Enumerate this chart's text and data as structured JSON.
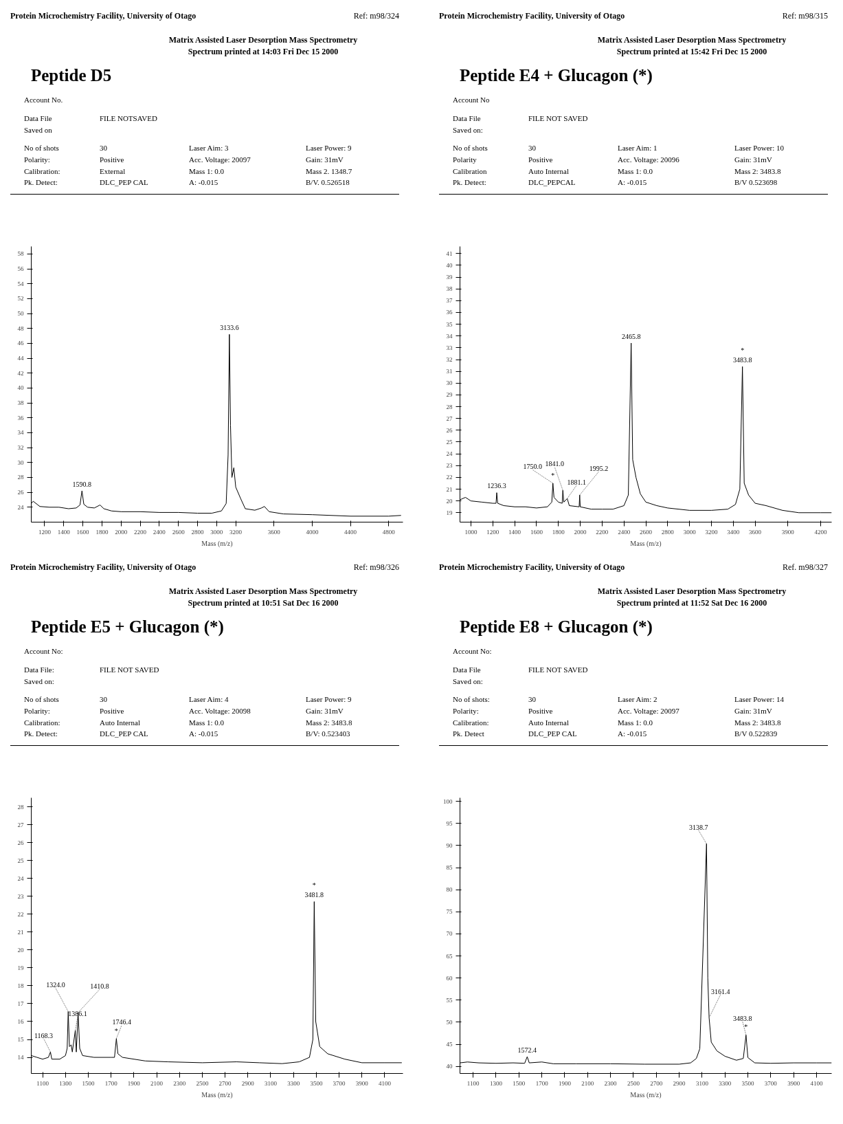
{
  "chart_data": [
    {
      "type": "line",
      "title": "Peptide D5",
      "subtitle": "Matrix Assisted Laser Desorption Mass Spectrometry",
      "xlabel": "Mass (m/z)",
      "color": "#000000",
      "xlim": [
        1060,
        4950
      ],
      "xticks": [
        1200,
        1400,
        1600,
        1800,
        2000,
        2200,
        2400,
        2600,
        2800,
        3000,
        3200,
        3600,
        4000,
        4400,
        4800
      ],
      "ylim": [
        22,
        59
      ],
      "yticks": [
        24,
        26,
        28,
        30,
        32,
        34,
        36,
        38,
        40,
        42,
        44,
        46,
        48,
        50,
        52,
        54,
        56,
        58
      ],
      "x": [
        1060,
        1080,
        1150,
        1250,
        1350,
        1450,
        1530,
        1570,
        1590.8,
        1610,
        1650,
        1720,
        1780,
        1820,
        1900,
        2000,
        2200,
        2400,
        2600,
        2800,
        2950,
        3050,
        3100,
        3120,
        3133.6,
        3145,
        3160,
        3180,
        3200,
        3250,
        3300,
        3400,
        3470,
        3500,
        3550,
        3700,
        4000,
        4400,
        4800,
        4930
      ],
      "values": [
        24.5,
        24.8,
        24.1,
        24.0,
        24.0,
        23.8,
        23.9,
        24.3,
        26.2,
        24.4,
        24.0,
        23.9,
        24.3,
        23.8,
        23.5,
        23.4,
        23.4,
        23.3,
        23.3,
        23.2,
        23.2,
        23.5,
        24.5,
        31.0,
        47.2,
        35.0,
        28.0,
        29.3,
        26.7,
        25.2,
        23.8,
        23.6,
        23.9,
        24.1,
        23.4,
        23.1,
        23.0,
        22.8,
        22.8,
        22.9
      ],
      "annotations": [
        "Protein Microchemistry Facility, University of Otago",
        "Ref: m98/324",
        "Spectrum printed at 14:03 Fri Dec 15 2000",
        "Account No.",
        "Data File",
        "FILE NOTSAVED",
        "Saved on",
        "No of shots",
        "30",
        "Laser Aim: 3",
        "Laser Power: 9",
        "Polarity:",
        "Positive",
        "Acc. Voltage: 20097",
        "Gain: 31mV",
        "Calibration:",
        "External",
        "Mass 1: 0.0",
        "Mass 2. 1348.7",
        "Pk. Detect:",
        "DLC_PEP CAL",
        "A: -0.015",
        "B/V. 0.526518",
        {
          "text": "1590.8",
          "x": 1590.8,
          "y": 26.2
        },
        {
          "text": "3133.6",
          "x": 3133.6,
          "y": 47.2
        }
      ]
    },
    {
      "type": "line",
      "title": "Peptide E4 + Glucagon (*)",
      "subtitle": "Matrix Assisted Laser Desorption Mass Spectrometry",
      "xlabel": "Mass (m/z)",
      "color": "#000000",
      "xlim": [
        900,
        4300
      ],
      "xticks": [
        1000,
        1200,
        1400,
        1600,
        1800,
        2000,
        2200,
        2400,
        2600,
        2800,
        3000,
        3200,
        3400,
        3600,
        3900,
        4200
      ],
      "ylim": [
        18.2,
        41.6
      ],
      "yticks": [
        19,
        20,
        21,
        22,
        23,
        24,
        25,
        26,
        27,
        28,
        29,
        30,
        31,
        32,
        33,
        34,
        35,
        36,
        37,
        38,
        39,
        40,
        41
      ],
      "x": [
        900,
        950,
        1000,
        1100,
        1200,
        1230,
        1236.3,
        1245,
        1300,
        1400,
        1500,
        1600,
        1700,
        1740,
        1750,
        1760,
        1800,
        1835,
        1841,
        1850,
        1881.1,
        1900,
        1990,
        1995.2,
        2000,
        2100,
        2200,
        2300,
        2400,
        2440,
        2465.8,
        2480,
        2510,
        2550,
        2600,
        2700,
        2800,
        3000,
        3200,
        3350,
        3420,
        3460,
        3483.8,
        3500,
        3540,
        3600,
        3700,
        3850,
        4000,
        4200,
        4300
      ],
      "values": [
        20.1,
        20.3,
        20.0,
        19.9,
        19.8,
        19.8,
        20.7,
        19.8,
        19.6,
        19.5,
        19.5,
        19.4,
        19.5,
        19.9,
        21.5,
        20.3,
        19.9,
        19.8,
        20.9,
        19.9,
        20.2,
        19.6,
        19.5,
        20.5,
        19.5,
        19.3,
        19.3,
        19.3,
        19.6,
        20.5,
        33.4,
        23.5,
        22.0,
        20.6,
        19.9,
        19.6,
        19.4,
        19.2,
        19.2,
        19.3,
        19.7,
        21.0,
        31.4,
        21.5,
        20.5,
        19.8,
        19.6,
        19.2,
        19.0,
        19.0,
        19.0
      ],
      "annotations": [
        "Protein Microchemistry Facility, University of Otago",
        "Ref: m98/315",
        "Spectrum printed at 15:42 Fri Dec 15 2000",
        "Account No",
        "Data File",
        "FILE NOT SAVED",
        "Saved on:",
        "No of shots",
        "30",
        "Laser Aim: 1",
        "Laser Power: 10",
        "Polarity",
        "Positive",
        "Acc. Voltage: 20096",
        "Gain: 31mV",
        "Calibration",
        "Auto Internal",
        "Mass 1: 0.0",
        "Mass 2: 3483.8",
        "Pk. Detect:",
        "DLC_PEPCAL",
        "A: -0.015",
        "B/V 0.523698",
        {
          "text": "1236.3",
          "x": 1236.3,
          "y": 20.7
        },
        {
          "text": "1750.0",
          "x": 1750,
          "y": 21.5
        },
        {
          "text": "*",
          "x": 1750,
          "y": 21.5
        },
        {
          "text": "1841.0",
          "x": 1841,
          "y": 20.9
        },
        {
          "text": "1881.1",
          "x": 1881.1,
          "y": 20.2
        },
        {
          "text": "1995.2",
          "x": 1995.2,
          "y": 20.5
        },
        {
          "text": "2465.8",
          "x": 2465.8,
          "y": 33.4
        },
        {
          "text": "3483.8",
          "x": 3483.8,
          "y": 31.4
        },
        {
          "text": "*",
          "x": 3483.8,
          "y": 31.4
        }
      ]
    },
    {
      "type": "line",
      "title": "Peptide E5 + Glucagon (*)",
      "subtitle": "Matrix Assisted Laser Desorption Mass Spectrometry",
      "xlabel": "Mass (m/z)",
      "color": "#000000",
      "xlim": [
        1000,
        4260
      ],
      "xticks": [
        1100,
        1300,
        1500,
        1700,
        1900,
        2100,
        2300,
        2500,
        2700,
        2900,
        3100,
        3300,
        3500,
        3700,
        3900,
        4100
      ],
      "ylim": [
        13.1,
        28.5
      ],
      "yticks": [
        14,
        15,
        16,
        17,
        18,
        19,
        20,
        21,
        22,
        23,
        24,
        25,
        26,
        27,
        28
      ],
      "x": [
        1000,
        1050,
        1100,
        1150,
        1168.3,
        1180,
        1250,
        1300,
        1315,
        1324,
        1335,
        1350,
        1360,
        1386.1,
        1395,
        1410.8,
        1425,
        1450,
        1550,
        1700,
        1730,
        1746.4,
        1760,
        1800,
        2000,
        2200,
        2500,
        2800,
        3000,
        3200,
        3350,
        3440,
        3470,
        3481.8,
        3495,
        3530,
        3600,
        3750,
        3900,
        4100,
        4250
      ],
      "values": [
        14.1,
        14.0,
        13.9,
        14.0,
        14.3,
        13.9,
        13.9,
        14.1,
        14.5,
        16.56,
        14.6,
        14.7,
        14.3,
        15.5,
        14.3,
        16.5,
        14.5,
        14.1,
        14.0,
        14.0,
        14.0,
        15.05,
        14.2,
        14.0,
        13.8,
        13.75,
        13.7,
        13.75,
        13.7,
        13.65,
        13.75,
        14.0,
        15.0,
        22.7,
        16.0,
        14.6,
        14.2,
        13.9,
        13.7,
        13.7,
        13.7
      ],
      "annotations": [
        "Protein Microchemistry Facility, University of Otago",
        "Ref: m98/326",
        "Spectrum printed at 10:51 Sat Dec 16 2000",
        "Account No:",
        "Data File:",
        "FILE NOT SAVED",
        "Saved on:",
        "No of shots",
        "30",
        "Laser Aim: 4",
        "Laser Power: 9",
        "Polarity:",
        "Positive",
        "Acc. Voltage: 20098",
        "Gain: 31mV",
        "Calibration:",
        "Auto Internal",
        "Mass 1: 0.0",
        "Mass 2: 3483.8",
        "Pk. Detect:",
        "DLC_PEP CAL",
        "A: -0.015",
        "B/V: 0.523403",
        {
          "text": "1168.3",
          "x": 1168.3,
          "y": 14.3
        },
        {
          "text": "1324.0",
          "x": 1324,
          "y": 16.56
        },
        {
          "text": "1386.1",
          "x": 1386.1,
          "y": 15.5
        },
        {
          "text": "1410.8",
          "x": 1410.8,
          "y": 16.5
        },
        {
          "text": "1746.4",
          "x": 1746.4,
          "y": 15.05
        },
        {
          "text": "*",
          "x": 1746.4,
          "y": 15.05
        },
        {
          "text": "3481.8",
          "x": 3481.8,
          "y": 22.7
        },
        {
          "text": "*",
          "x": 3481.8,
          "y": 22.7
        }
      ]
    },
    {
      "type": "line",
      "title": "Peptide E8 + Glucagon (*)",
      "subtitle": "Matrix Assisted Laser Desorption Mass Spectrometry",
      "xlabel": "Mass (m/z)",
      "color": "#000000",
      "xlim": [
        985,
        4232
      ],
      "xticks": [
        1100,
        1300,
        1500,
        1700,
        1900,
        2100,
        2300,
        2500,
        2700,
        2900,
        3100,
        3300,
        3500,
        3700,
        3900,
        4100
      ],
      "ylim": [
        38.4,
        100.8
      ],
      "yticks": [
        40,
        45,
        50,
        55,
        60,
        65,
        70,
        75,
        80,
        85,
        90,
        95,
        100
      ],
      "x": [
        985,
        1050,
        1150,
        1300,
        1450,
        1550,
        1572.4,
        1590,
        1700,
        1800,
        2000,
        2300,
        2600,
        2900,
        3000,
        3050,
        3080,
        3138.7,
        3150,
        3161.4,
        3180,
        3230,
        3300,
        3400,
        3460,
        3483.8,
        3500,
        3560,
        3700,
        3900,
        4100,
        4232
      ],
      "values": [
        40.8,
        41.0,
        40.8,
        40.7,
        40.8,
        40.7,
        42.2,
        40.8,
        41.0,
        40.6,
        40.6,
        40.6,
        40.5,
        40.5,
        40.8,
        41.8,
        44.0,
        90.4,
        60.0,
        51.0,
        45.5,
        43.5,
        42.3,
        41.4,
        41.8,
        47.1,
        42.0,
        40.8,
        40.7,
        40.8,
        40.8,
        40.8
      ],
      "annotations": [
        "Protein Microchemistry Facility, University of Otago",
        "Ref. m98/327",
        "Spectrum printed at 11:52 Sat Dec 16 2000",
        "Account No:",
        "Data File",
        "FILE NOT SAVED",
        "Saved on:",
        "No of shots:",
        "30",
        "Laser Aim: 2",
        "Laser Power: 14",
        "Polarity:",
        "Positive",
        "Acc. Voltage: 20097",
        "Gain: 31mV",
        "Calibration:",
        "Auto Internal",
        "Mass 1: 0.0",
        "Mass 2: 3483.8",
        "Pk. Detect",
        "DLC_PEP CAL",
        "A: -0.015",
        "B/V 0.522839",
        {
          "text": "1572.4",
          "x": 1572.4,
          "y": 42.2
        },
        {
          "text": "3138.7",
          "x": 3138.7,
          "y": 90.4
        },
        {
          "text": "3161.4",
          "x": 3161.4,
          "y": 51.0
        },
        {
          "text": "3483.8",
          "x": 3483.8,
          "y": 47.1
        },
        {
          "text": "*",
          "x": 3483.8,
          "y": 47.1
        }
      ]
    }
  ]
}
